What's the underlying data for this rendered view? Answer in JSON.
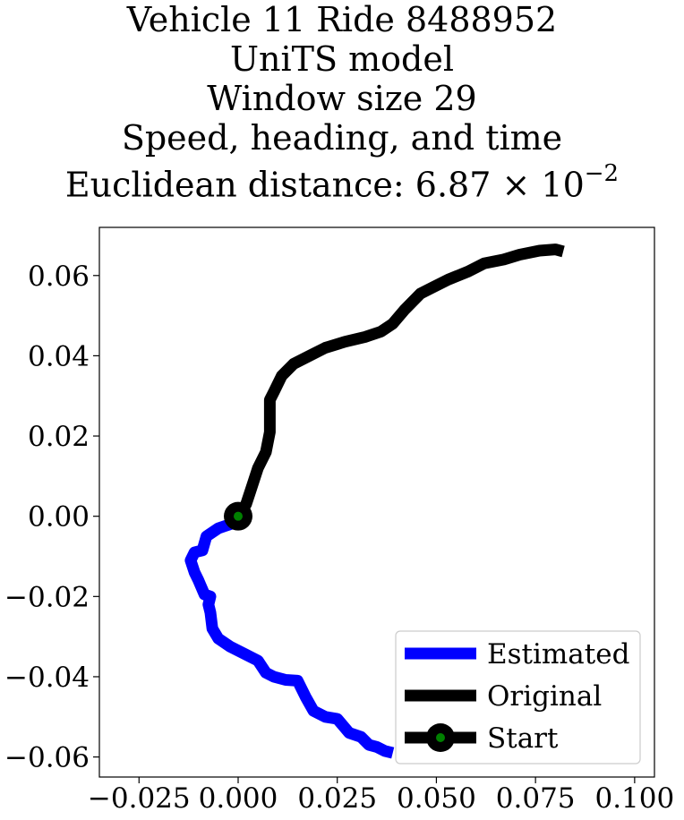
{
  "chart_data": {
    "type": "line",
    "title_lines": [
      "Vehicle 11 Ride 8488952",
      "UniTS model",
      "Window size 29",
      "Speed, heading, and time"
    ],
    "title_metric_prefix": "Euclidean distance: ",
    "title_metric_mantissa": "6.87",
    "title_metric_base": "10",
    "title_metric_exponent": "−2",
    "xlim": [
      -0.035,
      0.105
    ],
    "ylim": [
      -0.065,
      0.072
    ],
    "x_ticks": [
      -0.025,
      0.0,
      0.025,
      0.05,
      0.075,
      0.1
    ],
    "x_tick_labels": [
      "−0.025",
      "0.000",
      "0.025",
      "0.050",
      "0.075",
      "0.100"
    ],
    "y_ticks": [
      -0.06,
      -0.04,
      -0.02,
      0.0,
      0.02,
      0.04,
      0.06
    ],
    "y_tick_labels": [
      "−0.06",
      "−0.04",
      "−0.02",
      "0.00",
      "0.02",
      "0.04",
      "0.06"
    ],
    "grid": false,
    "legend_position": "lower-right",
    "series": [
      {
        "name": "Estimated",
        "color": "#0000ff",
        "x": [
          0.0,
          -0.002,
          -0.005,
          -0.008,
          -0.009,
          -0.011,
          -0.012,
          -0.011,
          -0.01,
          -0.0085,
          -0.007,
          -0.0075,
          -0.007,
          -0.0065,
          -0.005,
          -0.002,
          0.002,
          0.005,
          0.007,
          0.009,
          0.012,
          0.015,
          0.017,
          0.019,
          0.022,
          0.025,
          0.028,
          0.031,
          0.033,
          0.035,
          0.037,
          0.039
        ],
        "y": [
          0.0,
          -0.002,
          -0.003,
          -0.005,
          -0.0085,
          -0.009,
          -0.011,
          -0.014,
          -0.016,
          -0.0195,
          -0.02,
          -0.022,
          -0.024,
          -0.028,
          -0.0305,
          -0.0325,
          -0.0345,
          -0.036,
          -0.039,
          -0.04,
          -0.0408,
          -0.041,
          -0.045,
          -0.0485,
          -0.05,
          -0.0505,
          -0.054,
          -0.055,
          -0.057,
          -0.0575,
          -0.0585,
          -0.059
        ]
      },
      {
        "name": "Original",
        "color": "#000000",
        "x": [
          0.0,
          0.002,
          0.003,
          0.004,
          0.005,
          0.007,
          0.008,
          0.008,
          0.008,
          0.009,
          0.011,
          0.014,
          0.018,
          0.022,
          0.027,
          0.032,
          0.036,
          0.039,
          0.042,
          0.046,
          0.049,
          0.053,
          0.058,
          0.062,
          0.067,
          0.071,
          0.076,
          0.08,
          0.082
        ],
        "y": [
          0.0,
          0.003,
          0.006,
          0.009,
          0.012,
          0.016,
          0.021,
          0.026,
          0.029,
          0.031,
          0.035,
          0.038,
          0.04,
          0.042,
          0.0435,
          0.0447,
          0.046,
          0.048,
          0.0515,
          0.0555,
          0.057,
          0.059,
          0.061,
          0.063,
          0.064,
          0.0652,
          0.0662,
          0.0665,
          0.066
        ]
      }
    ],
    "start_point": {
      "name": "Start",
      "x": 0.0,
      "y": 0.0,
      "outer_color": "#000000",
      "inner_color": "#008000"
    }
  }
}
